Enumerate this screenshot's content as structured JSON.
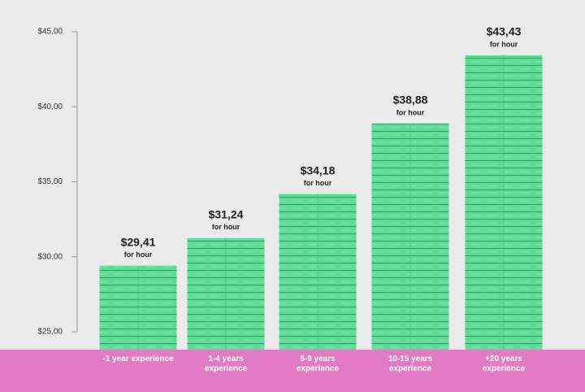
{
  "chart_data": {
    "type": "bar",
    "categories": [
      "-1 year experience",
      "1-4 years experience",
      "5-9 years experience",
      "10-15 years experience",
      "+20 years experience"
    ],
    "values": [
      29.41,
      31.24,
      34.18,
      38.88,
      43.43
    ],
    "value_labels": [
      "$29,41",
      "$31,24",
      "$34,18",
      "$38,88",
      "$43,43"
    ],
    "value_note": "for hour",
    "color": "#5fdc97",
    "ylim": [
      25,
      45
    ],
    "yticks": [
      {
        "value": 25,
        "label": "$25,00"
      },
      {
        "value": 30,
        "label": "$30,00"
      },
      {
        "value": 35,
        "label": "$35,00"
      },
      {
        "value": 40,
        "label": "$40,00"
      },
      {
        "value": 45,
        "label": "$45,00"
      }
    ],
    "grid": false
  }
}
